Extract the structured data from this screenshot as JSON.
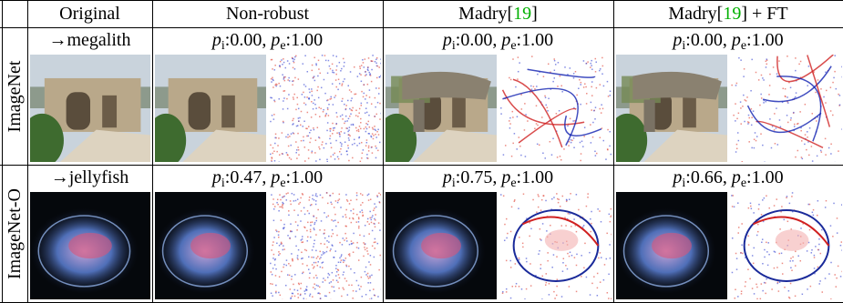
{
  "header": {
    "columns": [
      [
        "Original"
      ],
      [
        "Non-robust"
      ],
      [
        "Madry[",
        "19",
        "]"
      ],
      [
        "Madry[",
        "19",
        "] + FT"
      ]
    ]
  },
  "rows": [
    {
      "label": "ImageNet",
      "target": "→megalith",
      "scores": [
        {
          "p1": "p",
          "s1": "i",
          "v1": ":0.00, ",
          "p2": "p",
          "s2": "e",
          "v2": ":1.00"
        },
        {
          "p1": "p",
          "s1": "i",
          "v1": ":0.00, ",
          "p2": "p",
          "s2": "e",
          "v2": ":1.00"
        },
        {
          "p1": "p",
          "s1": "i",
          "v1": ":0.00, ",
          "p2": "p",
          "s2": "e",
          "v2": ":1.00"
        }
      ]
    },
    {
      "label": "ImageNet-O",
      "target": "→jellyfish",
      "scores": [
        {
          "p1": "p",
          "s1": "i",
          "v1": ":0.47, ",
          "p2": "p",
          "s2": "e",
          "v2": ":1.00"
        },
        {
          "p1": "p",
          "s1": "i",
          "v1": ":0.75, ",
          "p2": "p",
          "s2": "e",
          "v2": ":1.00"
        },
        {
          "p1": "p",
          "s1": "i",
          "v1": ":0.66, ",
          "p2": "p",
          "s2": "e",
          "v2": ":1.00"
        }
      ]
    }
  ]
}
